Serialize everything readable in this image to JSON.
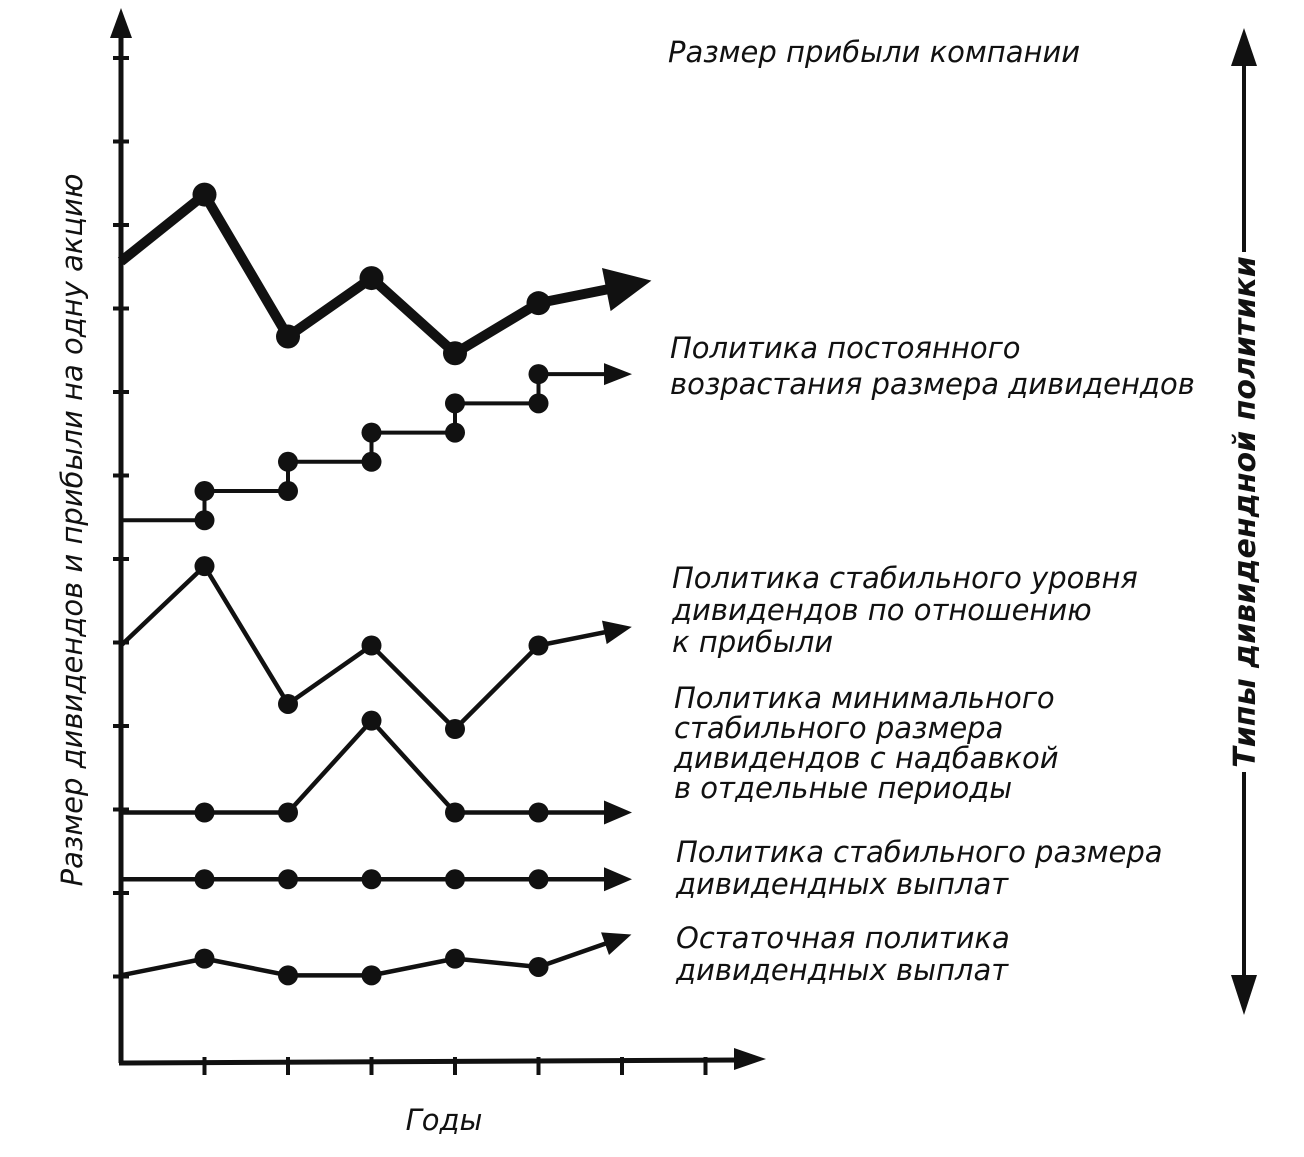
{
  "axes": {
    "y_label": "Размер дивидендов и прибыли на одну акцию",
    "x_label": "Годы"
  },
  "side_label": "Типы дивидендной политики",
  "series": [
    {
      "id": "profit",
      "label_lines": [
        "Размер прибыли компании"
      ],
      "values": [
        9.6,
        10.4,
        8.7,
        9.4,
        8.5,
        9.1,
        9.3
      ]
    },
    {
      "id": "growing",
      "label_lines": [
        "Политика постоянного",
        "возрастания размера дивидендов"
      ],
      "steps": [
        6.5,
        6.85,
        7.2,
        7.55,
        7.9,
        8.25
      ],
      "end": 8.25
    },
    {
      "id": "stable-ratio",
      "label_lines": [
        "Политика стабильного уровня",
        "дивидендов по отношению",
        "к прибыли"
      ],
      "values": [
        5.0,
        5.95,
        4.3,
        5.0,
        4.0,
        5.0,
        5.2
      ]
    },
    {
      "id": "min-stable",
      "label_lines": [
        "Политика минимального",
        "стабильного размера",
        "дивидендов с надбавкой",
        "в отдельные периоды"
      ],
      "values": [
        3.0,
        3.0,
        3.0,
        4.1,
        3.0,
        3.0,
        3.0
      ]
    },
    {
      "id": "stable-payout",
      "label_lines": [
        "Политика стабильного размера",
        "дивидендных выплат"
      ],
      "values": [
        2.2,
        2.2,
        2.2,
        2.2,
        2.2,
        2.2,
        2.2
      ]
    },
    {
      "id": "residual",
      "label_lines": [
        "Остаточная политика",
        "дивидендных выплат"
      ],
      "values": [
        1.05,
        1.25,
        1.05,
        1.05,
        1.25,
        1.15,
        1.5
      ]
    }
  ]
}
